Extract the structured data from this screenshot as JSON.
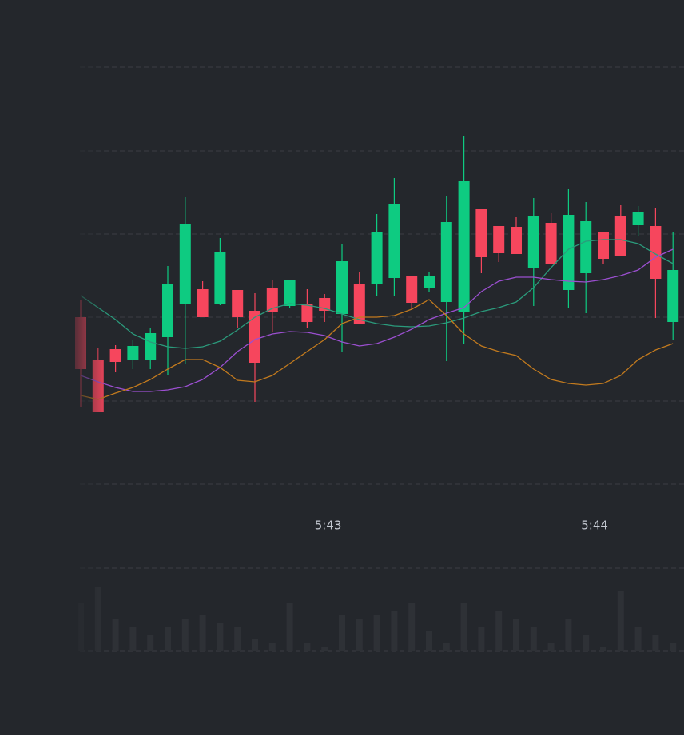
{
  "chart_data": {
    "type": "candlestick",
    "categories": [
      null,
      null,
      null,
      null,
      null,
      null,
      null,
      null,
      null,
      null,
      null,
      null,
      null,
      null,
      null,
      null,
      null,
      null,
      null,
      null,
      null,
      null,
      null,
      null,
      null,
      null,
      null,
      null,
      null,
      null,
      null,
      null,
      null,
      null,
      null
    ],
    "xticks": [
      {
        "value": 14.2,
        "label": "5:43"
      },
      {
        "value": 29.5,
        "label": "5:44"
      }
    ],
    "open": [
      209,
      156,
      169,
      156,
      155,
      184,
      226,
      244,
      226,
      243,
      217,
      246,
      223,
      226,
      233,
      213,
      251,
      250,
      258,
      261,
      245,
      228,
      215,
      345,
      323,
      322,
      271,
      327,
      243,
      264,
      316,
      336,
      324,
      323,
      203
    ],
    "high": [
      231,
      171,
      174,
      181,
      196,
      273,
      360,
      254,
      308,
      243,
      239,
      256,
      256,
      244,
      238,
      301,
      266,
      338,
      383,
      261,
      266,
      361,
      436,
      345,
      323,
      334,
      358,
      339,
      369,
      353,
      316,
      349,
      348,
      346,
      316
    ],
    "low": [
      96,
      90,
      140,
      144,
      144,
      136,
      151,
      209,
      224,
      196,
      103,
      191,
      221,
      196,
      203,
      166,
      200,
      236,
      236,
      218,
      241,
      154,
      176,
      264,
      278,
      288,
      223,
      276,
      221,
      214,
      276,
      285,
      311,
      208,
      181
    ],
    "close": [
      144,
      90,
      153,
      173,
      189,
      250,
      326,
      209,
      291,
      209,
      152,
      215,
      256,
      203,
      217,
      279,
      200,
      315,
      351,
      227,
      261,
      328,
      379,
      284,
      289,
      288,
      336,
      276,
      337,
      329,
      282,
      285,
      341,
      257,
      268
    ],
    "up_color": "#0ecb81",
    "down_color": "#f6465d",
    "series": [
      {
        "color": "#2b9b7c",
        "values": [
          236,
          221,
          206,
          188,
          178,
          172,
          170,
          172,
          179,
          193,
          209,
          220,
          226,
          224,
          220,
          213,
          206,
          201,
          198,
          197,
          198,
          202,
          208,
          216,
          221,
          228,
          246,
          271,
          294,
          304,
          306,
          306,
          301,
          288,
          276
        ]
      },
      {
        "color": "#9b4fd0",
        "values": [
          136,
          128,
          121,
          116,
          116,
          118,
          122,
          131,
          146,
          166,
          181,
          188,
          191,
          190,
          186,
          178,
          173,
          176,
          184,
          194,
          206,
          214,
          221,
          241,
          254,
          259,
          259,
          256,
          254,
          253,
          256,
          261,
          268,
          284,
          294
        ]
      },
      {
        "color": "#c27a1e",
        "values": [
          111,
          106,
          114,
          121,
          131,
          144,
          156,
          156,
          146,
          130,
          128,
          136,
          151,
          166,
          181,
          201,
          209,
          209,
          211,
          219,
          231,
          211,
          188,
          173,
          166,
          161,
          144,
          131,
          126,
          124,
          126,
          136,
          156,
          168,
          176
        ]
      }
    ],
    "ylim": [
      0,
      522
    ],
    "yticks": [
      0,
      104,
      209,
      313,
      417,
      522
    ],
    "grid": true,
    "volume": [
      60,
      80,
      40,
      30,
      20,
      30,
      40,
      45,
      35,
      30,
      15,
      10,
      60,
      10,
      5,
      45,
      40,
      45,
      50,
      60,
      25,
      10,
      60,
      30,
      50,
      40,
      30,
      10,
      40,
      20,
      5,
      75,
      30,
      20,
      10
    ],
    "volume_color": "#2e3136",
    "volume_ylim": [
      0,
      104
    ],
    "volume_yticks": [
      0,
      104
    ]
  }
}
